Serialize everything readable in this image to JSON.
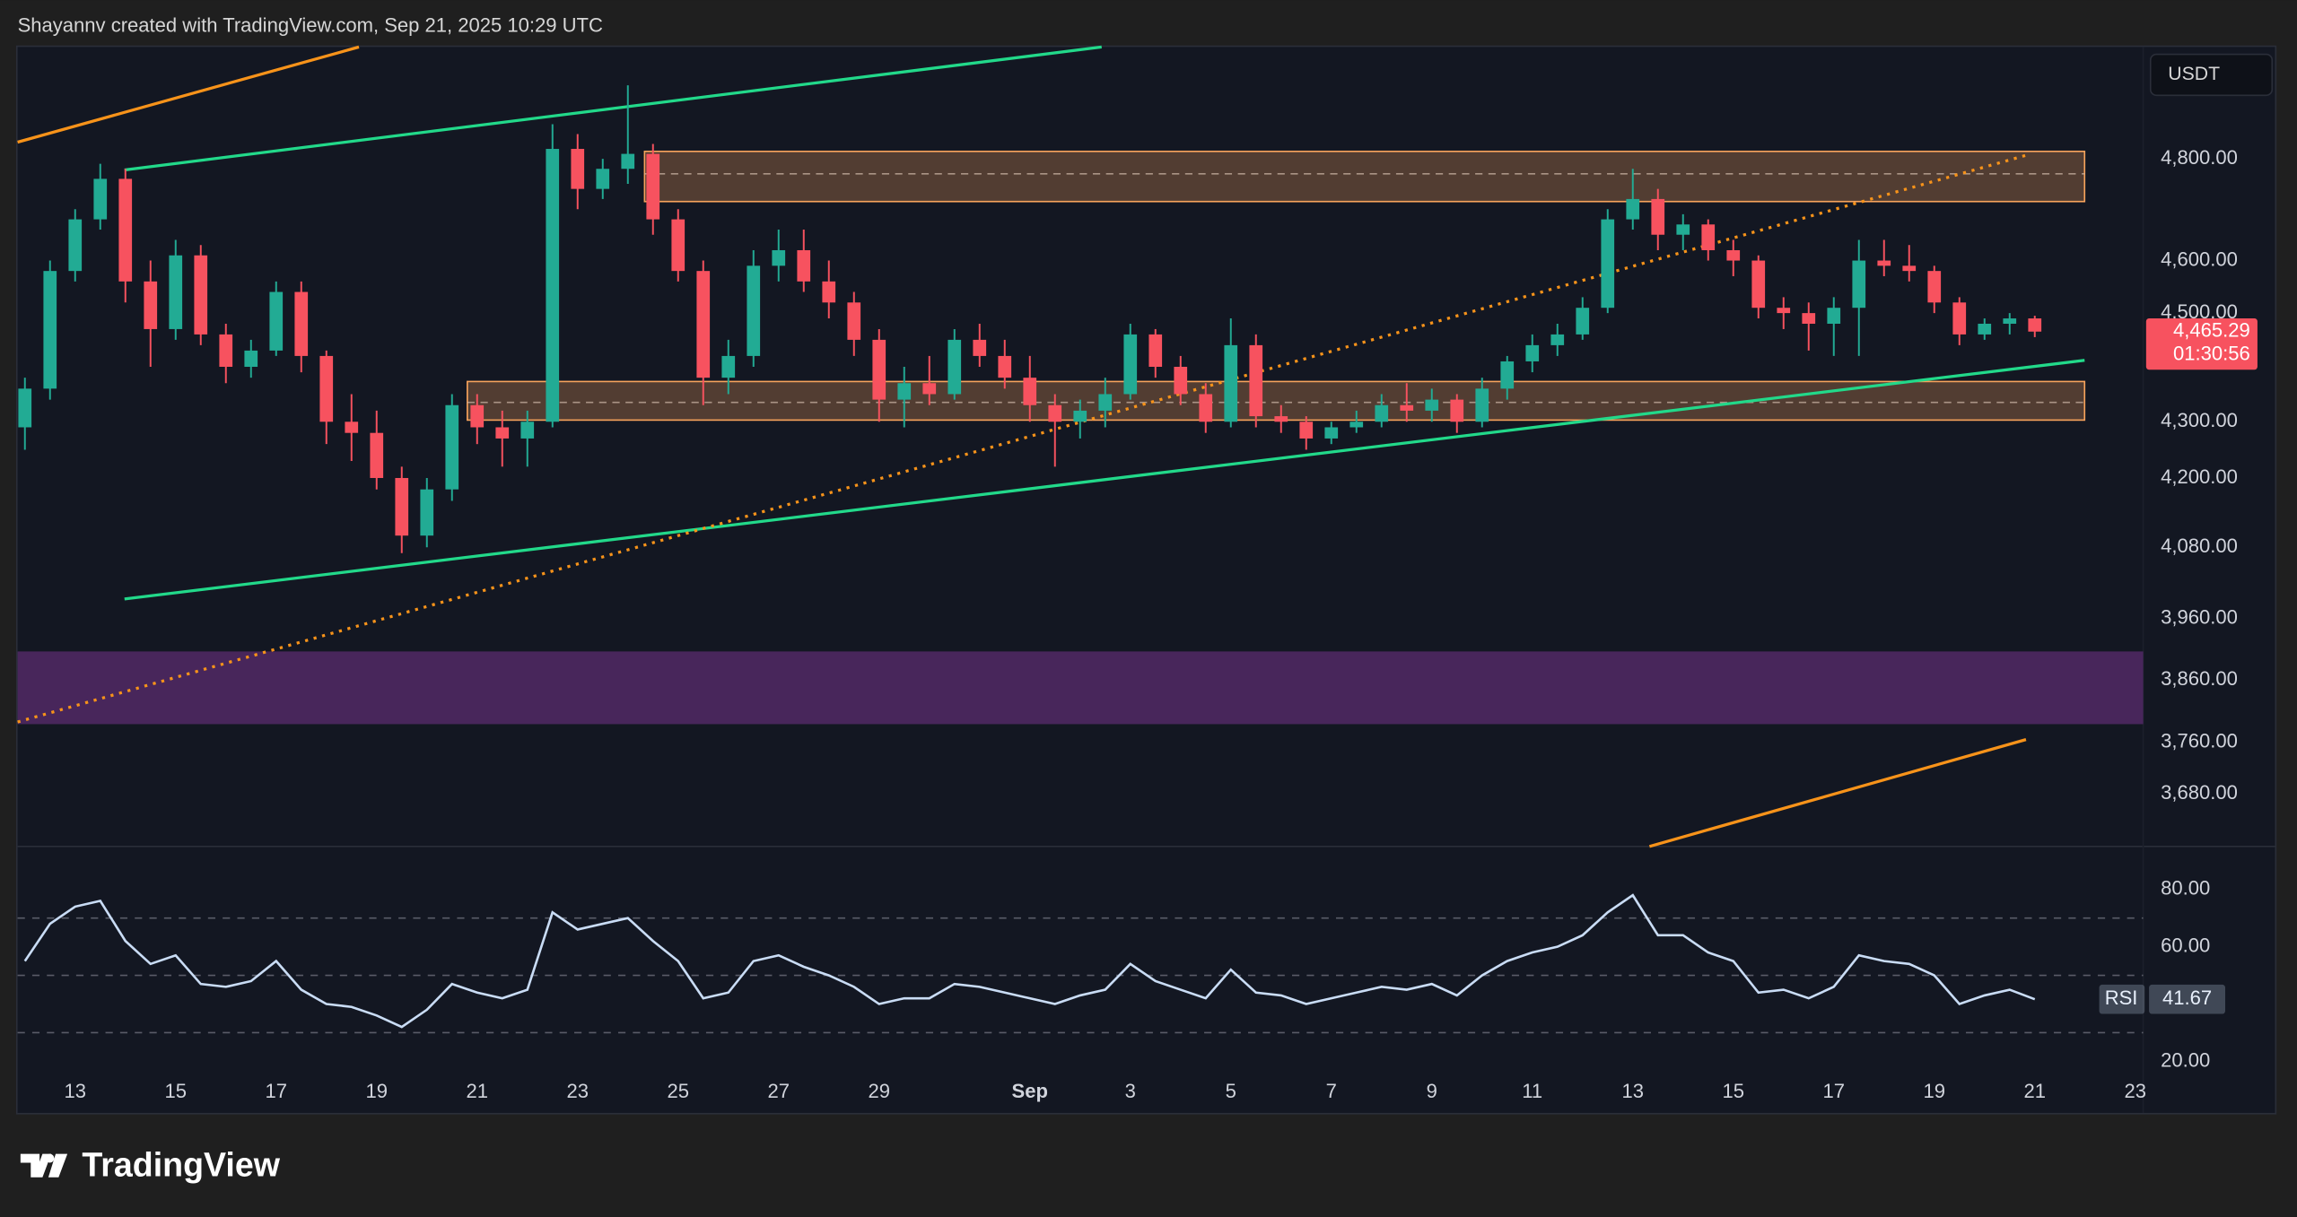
{
  "header": {
    "credit": "Shayannv created with TradingView.com, Sep 21, 2025 10:29 UTC"
  },
  "toolbar": {
    "currency": "USDT"
  },
  "footer": {
    "brand": "TradingView"
  },
  "chart_data": [
    {
      "type": "candlestick",
      "log_scale": true,
      "up_color": "#22ab94",
      "down_color": "#f7525f",
      "categories": [
        null,
        null,
        "13",
        null,
        null,
        null,
        "15",
        null,
        null,
        null,
        "17",
        null,
        null,
        null,
        "19",
        null,
        null,
        null,
        "21",
        null,
        null,
        null,
        "23",
        null,
        null,
        null,
        "25",
        null,
        null,
        null,
        "27",
        null,
        null,
        null,
        "29",
        null,
        null,
        null,
        null,
        null,
        "Sep",
        null,
        null,
        null,
        "3",
        null,
        null,
        null,
        "5",
        null,
        null,
        null,
        "7",
        null,
        null,
        null,
        "9",
        null,
        null,
        null,
        "11",
        null,
        null,
        null,
        "13",
        null,
        null,
        null,
        "15",
        null,
        null,
        null,
        "17",
        null,
        null,
        null,
        "19",
        null,
        null,
        null,
        "21",
        null,
        null,
        null,
        "23"
      ],
      "open": [
        4290,
        4360,
        4580,
        4680,
        4760,
        4560,
        4470,
        4610,
        4460,
        4400,
        4430,
        4540,
        4420,
        4300,
        4280,
        4200,
        4100,
        4180,
        4330,
        4290,
        4270,
        4300,
        4820,
        4740,
        4780,
        4810,
        4680,
        4580,
        4380,
        4420,
        4590,
        4620,
        4560,
        4520,
        4450,
        4340,
        4370,
        4350,
        4450,
        4420,
        4380,
        4330,
        4300,
        4320,
        4350,
        4460,
        4400,
        4350,
        4300,
        4440,
        4310,
        4300,
        4270,
        4290,
        4300,
        4330,
        4320,
        4340,
        4300,
        4360,
        4410,
        4440,
        4460,
        4510,
        4680,
        4720,
        4650,
        4670,
        4620,
        4600,
        4510,
        4500,
        4480,
        4510,
        4600,
        4590,
        4580,
        4520,
        4460,
        4480,
        4490,
        null,
        null,
        null,
        null
      ],
      "high": [
        4380,
        4600,
        4700,
        4790,
        4780,
        4600,
        4640,
        4630,
        4480,
        4450,
        4560,
        4560,
        4430,
        4350,
        4320,
        4220,
        4200,
        4350,
        4350,
        4320,
        4320,
        4870,
        4850,
        4800,
        4950,
        4830,
        4700,
        4600,
        4450,
        4620,
        4660,
        4660,
        4600,
        4540,
        4470,
        4400,
        4420,
        4470,
        4480,
        4450,
        4420,
        4350,
        4340,
        4380,
        4480,
        4470,
        4420,
        4370,
        4490,
        4460,
        4330,
        4310,
        4300,
        4320,
        4350,
        4370,
        4360,
        4350,
        4380,
        4420,
        4460,
        4480,
        4530,
        4700,
        4780,
        4740,
        4690,
        4680,
        4640,
        4610,
        4530,
        4520,
        4530,
        4640,
        4640,
        4630,
        4590,
        4530,
        4490,
        4500,
        4495,
        null,
        null,
        null,
        null
      ],
      "low": [
        4250,
        4340,
        4560,
        4660,
        4520,
        4400,
        4450,
        4440,
        4370,
        4380,
        4420,
        4390,
        4260,
        4230,
        4180,
        4070,
        4080,
        4160,
        4260,
        4220,
        4220,
        4290,
        4700,
        4720,
        4750,
        4650,
        4560,
        4330,
        4350,
        4400,
        4560,
        4540,
        4490,
        4420,
        4300,
        4290,
        4330,
        4340,
        4400,
        4360,
        4300,
        4220,
        4270,
        4290,
        4340,
        4380,
        4330,
        4280,
        4290,
        4290,
        4280,
        4250,
        4260,
        4280,
        4290,
        4300,
        4300,
        4280,
        4290,
        4340,
        4390,
        4420,
        4450,
        4500,
        4660,
        4620,
        4620,
        4600,
        4570,
        4490,
        4470,
        4430,
        4420,
        4420,
        4570,
        4560,
        4500,
        4440,
        4450,
        4460,
        4455,
        null,
        null,
        null,
        null
      ],
      "close": [
        4360,
        4580,
        4680,
        4760,
        4560,
        4470,
        4610,
        4460,
        4400,
        4430,
        4540,
        4420,
        4300,
        4280,
        4200,
        4100,
        4180,
        4330,
        4290,
        4270,
        4300,
        4820,
        4740,
        4780,
        4810,
        4680,
        4580,
        4380,
        4420,
        4590,
        4620,
        4560,
        4520,
        4450,
        4340,
        4370,
        4350,
        4450,
        4420,
        4380,
        4330,
        4300,
        4320,
        4350,
        4460,
        4400,
        4350,
        4300,
        4440,
        4310,
        4300,
        4270,
        4290,
        4300,
        4330,
        4320,
        4340,
        4300,
        4360,
        4410,
        4440,
        4460,
        4510,
        4680,
        4720,
        4650,
        4670,
        4620,
        4600,
        4510,
        4500,
        4480,
        4510,
        4600,
        4590,
        4580,
        4520,
        4460,
        4480,
        4490,
        4465.29,
        null,
        null,
        null,
        null
      ],
      "ylim": [
        3600,
        5030
      ],
      "yticks": [
        {
          "value": 4800,
          "label": "4,800.00"
        },
        {
          "value": 4600,
          "label": "4,600.00"
        },
        {
          "value": 4500,
          "label": "4,500.00"
        },
        {
          "value": 4300,
          "label": "4,300.00"
        },
        {
          "value": 4200,
          "label": "4,200.00"
        },
        {
          "value": 4080,
          "label": "4,080.00"
        },
        {
          "value": 3960,
          "label": "3,960.00"
        },
        {
          "value": 3860,
          "label": "3,860.00"
        },
        {
          "value": 3760,
          "label": "3,760.00"
        },
        {
          "value": 3680,
          "label": "3,680.00"
        }
      ],
      "grid": false,
      "last_price": {
        "value": 4465.29,
        "label": "4,465.29"
      },
      "countdown": "01:30:56",
      "zones": [
        {
          "low": 4715,
          "high": 4815,
          "mid": 4770,
          "color": "#f7a35c"
        },
        {
          "low": 4303,
          "high": 4373,
          "mid": 4335,
          "color": "#f7a35c"
        },
        {
          "low": 3789,
          "high": 3906,
          "color": "#5b2c6f"
        }
      ]
    },
    {
      "type": "line",
      "name": "RSI",
      "color": "#c9dcf5",
      "values": [
        55,
        68,
        74,
        76,
        62,
        54,
        57,
        47,
        46,
        48,
        55,
        45,
        40,
        39,
        36,
        32,
        38,
        47,
        44,
        42,
        45,
        72,
        66,
        68,
        70,
        62,
        55,
        42,
        44,
        55,
        57,
        53,
        50,
        46,
        40,
        42,
        42,
        47,
        46,
        44,
        42,
        40,
        43,
        45,
        54,
        48,
        45,
        42,
        52,
        44,
        43,
        40,
        42,
        44,
        46,
        45,
        47,
        43,
        50,
        55,
        58,
        60,
        64,
        72,
        78,
        64,
        64,
        58,
        55,
        44,
        45,
        42,
        46,
        57,
        55,
        54,
        50,
        40,
        43,
        45,
        41.67,
        null,
        null,
        null,
        null
      ],
      "ylim": [
        2,
        95
      ],
      "yticks": [
        {
          "value": 80,
          "label": "80.00"
        },
        {
          "value": 60,
          "label": "60.00"
        },
        {
          "value": 20,
          "label": "20.00"
        }
      ],
      "levels": [
        70,
        50,
        30
      ]
    }
  ]
}
